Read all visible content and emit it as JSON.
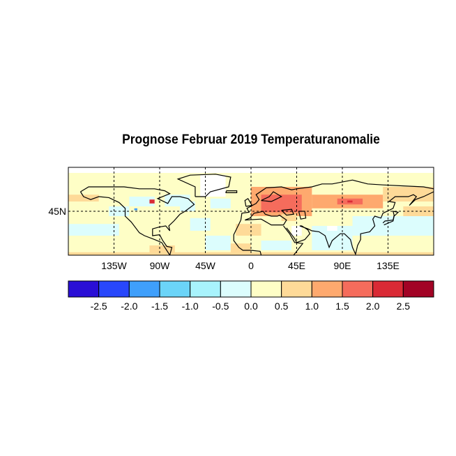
{
  "title": "Prognose Februar 2019 Temperaturanomalie",
  "map": {
    "projection": "equirectangular",
    "lon_range": [
      -180,
      180
    ],
    "lat_range": [
      0,
      90
    ],
    "lon_ticks": [
      {
        "value": -135,
        "label": "135W"
      },
      {
        "value": -90,
        "label": "90W"
      },
      {
        "value": -45,
        "label": "45W"
      },
      {
        "value": 0,
        "label": "0"
      },
      {
        "value": 45,
        "label": "45E"
      },
      {
        "value": 90,
        "label": "90E"
      },
      {
        "value": 135,
        "label": "135E"
      }
    ],
    "lat_ticks": [
      {
        "value": 45,
        "label": "45N"
      }
    ],
    "gridlines": "dashed"
  },
  "colorbar": {
    "boundaries": [
      "-2.5",
      "-2.0",
      "-1.5",
      "-1.0",
      "-0.5",
      "0.0",
      "0.5",
      "1.0",
      "1.5",
      "2.0",
      "2.5"
    ],
    "colors": [
      "#2a0fd6",
      "#2847fb",
      "#3f9ffb",
      "#6bd4f8",
      "#a8f3fc",
      "#dcfdfd",
      "#fefec6",
      "#feda98",
      "#fea96e",
      "#f56c5c",
      "#d92a35",
      "#a20325"
    ]
  }
}
